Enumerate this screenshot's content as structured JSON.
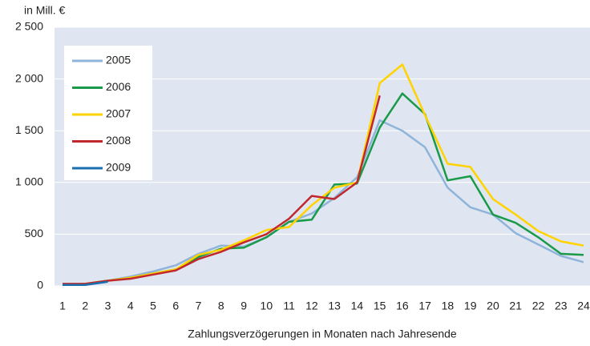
{
  "chart_data": {
    "type": "line",
    "y_unit_label": "in Mill. €",
    "x_label": "Zahlungsverzögerungen in Monaten nach Jahresende",
    "categories": [
      "1",
      "2",
      "3",
      "4",
      "5",
      "6",
      "7",
      "8",
      "9",
      "10",
      "11",
      "12",
      "13",
      "14",
      "15",
      "16",
      "17",
      "18",
      "19",
      "20",
      "21",
      "22",
      "23",
      "24"
    ],
    "ylim": [
      0,
      2500
    ],
    "yticks": [
      0,
      500,
      {
        "value": 1000,
        "label": "1 000"
      },
      {
        "value": 1500,
        "label": "1 500"
      },
      {
        "value": 2000,
        "label": "2 000"
      },
      {
        "value": 2500,
        "label": "2 500"
      }
    ],
    "grid": true,
    "legend": "upper left",
    "series": [
      {
        "name": "2005",
        "color": "#8fb4d9",
        "values": [
          10,
          15,
          50,
          90,
          140,
          200,
          310,
          390,
          380,
          470,
          620,
          700,
          850,
          1050,
          1600,
          1500,
          1340,
          950,
          760,
          690,
          510,
          400,
          290,
          230
        ]
      },
      {
        "name": "2006",
        "color": "#1a9a48",
        "values": [
          10,
          20,
          50,
          80,
          120,
          160,
          280,
          360,
          370,
          470,
          620,
          640,
          980,
          990,
          1530,
          1860,
          1660,
          1020,
          1060,
          690,
          610,
          470,
          310,
          300
        ]
      },
      {
        "name": "2007",
        "color": "#ffd200",
        "values": [
          10,
          20,
          50,
          80,
          120,
          160,
          300,
          350,
          440,
          540,
          570,
          780,
          950,
          1000,
          1960,
          2140,
          1650,
          1180,
          1150,
          840,
          690,
          530,
          430,
          390
        ]
      },
      {
        "name": "2008",
        "color": "#c0282d",
        "values": [
          20,
          20,
          50,
          70,
          110,
          150,
          260,
          330,
          420,
          500,
          650,
          870,
          840,
          1000,
          1840,
          null,
          null,
          null,
          null,
          null,
          null,
          null,
          null,
          null
        ]
      },
      {
        "name": "2009",
        "color": "#1a6fb0",
        "values": [
          10,
          10,
          40,
          null,
          null,
          null,
          null,
          null,
          null,
          null,
          null,
          null,
          null,
          null,
          null,
          null,
          null,
          null,
          null,
          null,
          null,
          null,
          null,
          null
        ]
      }
    ]
  }
}
